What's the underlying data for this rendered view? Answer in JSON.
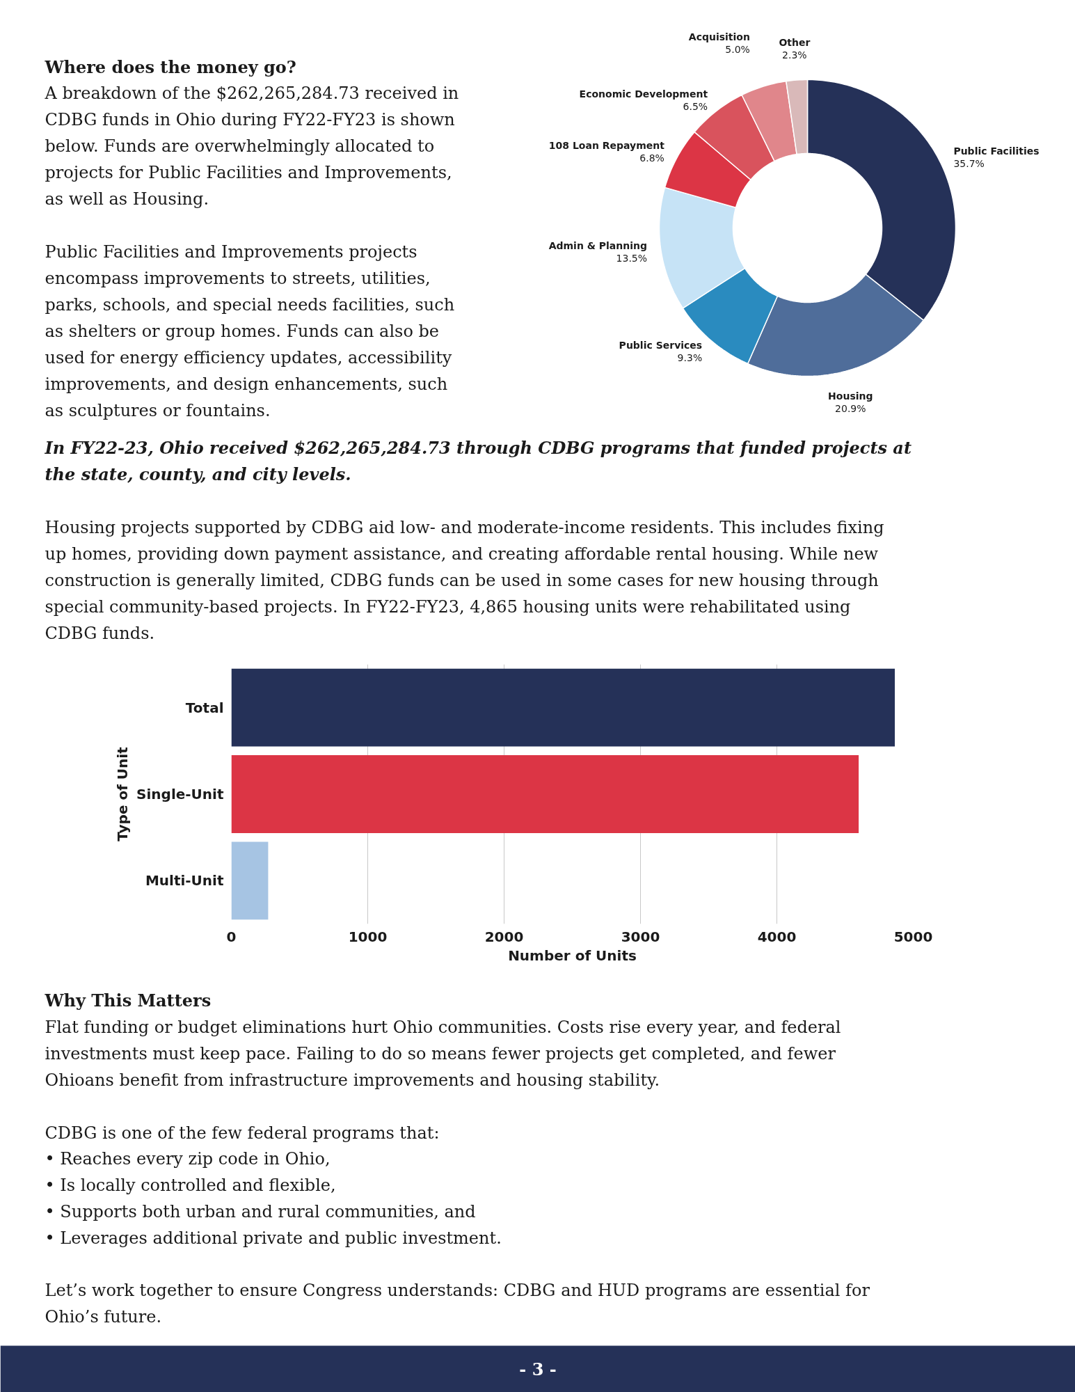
{
  "chart_data": [
    {
      "type": "donut",
      "categories": [
        "Public Facilities",
        "Housing",
        "Public Services",
        "Admin & Planning",
        "108 Loan Repayment",
        "Economic Development",
        "Acquisition",
        "Other"
      ],
      "values": [
        35.7,
        20.9,
        9.3,
        13.5,
        6.8,
        6.5,
        5.0,
        2.3
      ],
      "value_labels": [
        "35.7%",
        "20.9%",
        "9.3%",
        "13.5%",
        "6.8%",
        "6.5%",
        "5.0%",
        "2.3%"
      ],
      "colors": [
        "#253158",
        "#4f6d9a",
        "#2a8bbf",
        "#c6e3f6",
        "#dc3545",
        "#d9535d",
        "#e0868b",
        "#d9b9b9"
      ],
      "annotations": [
        "Where does the money go?",
        "A breakdown of the $262,265,284.73 received in\nCDBG funds in Ohio during FY22-FY23 is shown\nbelow. Funds are overwhelmingly allocated to\nprojects for Public Facilities and Improvements,\nas well as Housing.",
        "Public Facilities and Improvements projects\nencompass improvements to streets, utilities,\nparks, schools, and special needs facilities, such\nas shelters or group homes. Funds can also be\nused for energy efficiency updates, accessibility\nimprovements, and design enhancements, such\nas sculptures or fountains.",
        "In FY22-23, Ohio received $262,265,284.73 through CDBG programs that funded projects at\nthe state, county, and city levels."
      ]
    },
    {
      "type": "bar",
      "orientation": "horizontal",
      "categories": [
        "Total",
        "Single-Unit",
        "Multi-Unit"
      ],
      "values": [
        4865,
        4600,
        270
      ],
      "colors": [
        "#253158",
        "#dc3545",
        "#a6c4e3"
      ],
      "xlim": [
        0,
        5000
      ],
      "xticks": [
        0,
        1000,
        2000,
        3000,
        4000,
        5000
      ],
      "xlabel": "Number of Units",
      "ylabel": "Type of Unit",
      "grid": "x",
      "annotations": [
        "Housing projects supported by CDBG aid low- and moderate-income residents. This includes fixing\nup homes, providing down payment assistance, and creating affordable rental housing. While new\nconstruction is generally limited, CDBG funds can be used in some cases for new housing through\nspecial community-based projects. In FY22-FY23, 4,865 housing units were rehabilitated using\nCDBG funds.",
        "Why This Matters",
        "Flat funding or budget eliminations hurt Ohio communities. Costs rise every year, and federal\ninvestments must keep pace. Failing to do so means fewer projects get completed, and fewer\nOhioans benefit from infrastructure improvements and housing stability.",
        "CDBG is one of the few federal programs that:",
        "•  Reaches every zip code in Ohio,\n•  Is locally controlled and flexible,\n•  Supports both urban and rural communities, and\n•  Leverages additional private and public investment.",
        "Let’s work together to ensure Congress understands: CDBG and HUD programs are essential for\nOhio’s future.",
        "- 3 -"
      ]
    }
  ]
}
